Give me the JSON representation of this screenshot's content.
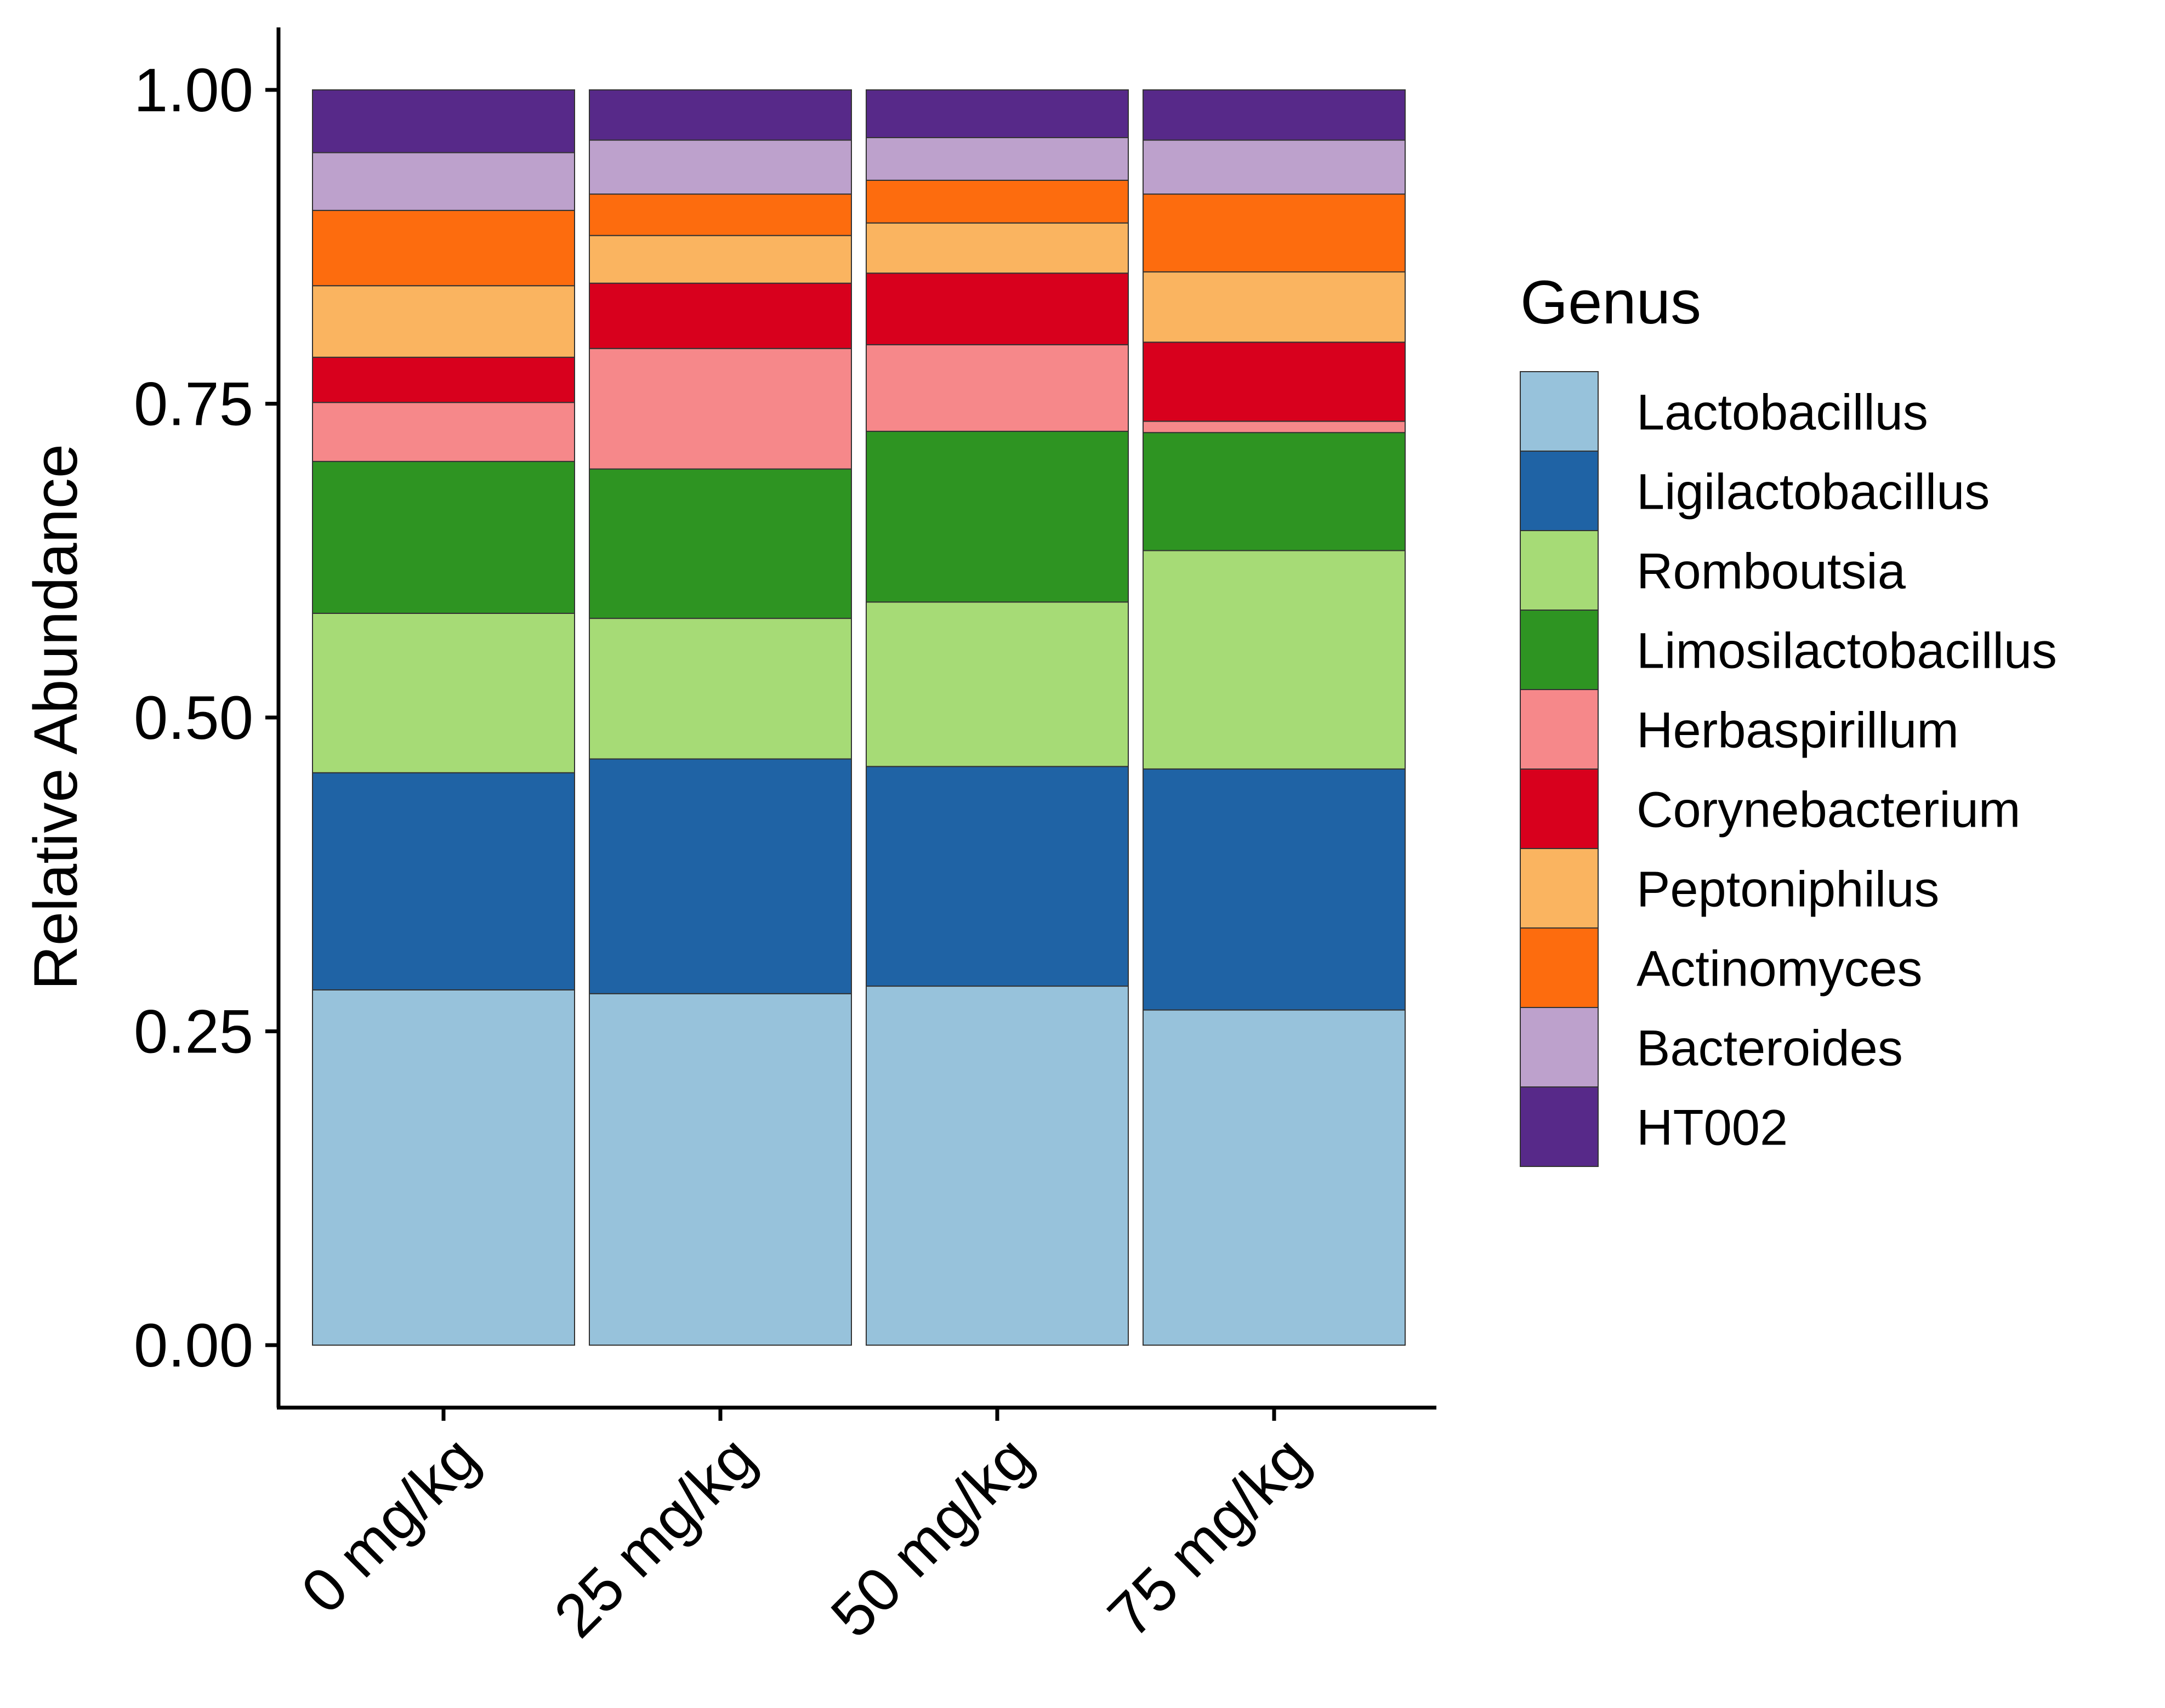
{
  "chart_data": {
    "type": "bar",
    "stacked": true,
    "ylabel": "Relative Abundance",
    "xlabel": "",
    "ylim": [
      0,
      1
    ],
    "yticks": [
      "0.00",
      "0.25",
      "0.50",
      "0.75",
      "1.00"
    ],
    "ytick_values": [
      0,
      0.25,
      0.5,
      0.75,
      1.0
    ],
    "grid": false,
    "categories": [
      "0 mg/kg",
      "25 mg/kg",
      "50 mg/kg",
      "75 mg/kg"
    ],
    "legend": {
      "title": "Genus",
      "placement": "right"
    },
    "series": [
      {
        "name": "Lactobacillus",
        "color": "#97C2DB",
        "values": [
          0.283,
          0.28,
          0.286,
          0.267
        ]
      },
      {
        "name": "Ligilactobacillus",
        "color": "#1F63A5",
        "values": [
          0.173,
          0.187,
          0.175,
          0.192
        ]
      },
      {
        "name": "Romboutsia",
        "color": "#A6DB76",
        "values": [
          0.127,
          0.112,
          0.131,
          0.174
        ]
      },
      {
        "name": "Limosilactobacillus",
        "color": "#2E9422",
        "values": [
          0.121,
          0.119,
          0.136,
          0.094
        ]
      },
      {
        "name": "Herbaspirillum",
        "color": "#F6888A",
        "values": [
          0.047,
          0.096,
          0.069,
          0.009
        ]
      },
      {
        "name": "Corynebacterium",
        "color": "#D8001D",
        "values": [
          0.036,
          0.052,
          0.057,
          0.063
        ]
      },
      {
        "name": "Peptoniphilus",
        "color": "#FAB460",
        "values": [
          0.057,
          0.038,
          0.04,
          0.056
        ]
      },
      {
        "name": "Actinomyces",
        "color": "#FD6C0E",
        "values": [
          0.06,
          0.033,
          0.034,
          0.062
        ]
      },
      {
        "name": "Bacteroides",
        "color": "#BDA1CC",
        "values": [
          0.046,
          0.043,
          0.034,
          0.043
        ]
      },
      {
        "name": "HT002",
        "color": "#572989",
        "values": [
          0.05,
          0.04,
          0.038,
          0.04
        ]
      }
    ]
  }
}
